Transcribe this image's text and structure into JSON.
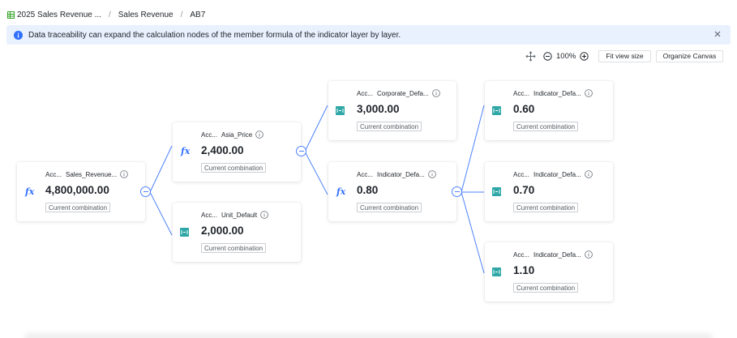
{
  "breadcrumb": {
    "items": [
      {
        "label": "2025 Sales Revenue ..."
      },
      {
        "label": "Sales Revenue"
      },
      {
        "label": "AB7"
      }
    ]
  },
  "banner": {
    "message": "Data traceability can expand the calculation nodes of the member formula of the indicator layer by layer."
  },
  "toolbar": {
    "zoom": "100%",
    "fit_label": "Fit view size",
    "organize_label": "Organize Canvas"
  },
  "colors": {
    "accent": "#3370ff",
    "link": "#4e83fd",
    "value_icon": "#2ea7a6",
    "banner_bg": "#e9f1fe"
  },
  "nodes": [
    {
      "code": "Acc...",
      "name": "Sales_Revenue...",
      "value": "4,800,000.00",
      "tag": "Current combination",
      "icon": "formula-icon"
    },
    {
      "code": "Acc...",
      "name": "Asia_Price",
      "value": "2,400.00",
      "tag": "Current combination",
      "icon": "formula-icon"
    },
    {
      "code": "Acc...",
      "name": "Unit_Default",
      "value": "2,000.00",
      "tag": "Current combination",
      "icon": "value-icon"
    },
    {
      "code": "Acc...",
      "name": "Corporate_Defa...",
      "value": "3,000.00",
      "tag": "Current combination",
      "icon": "value-icon"
    },
    {
      "code": "Acc...",
      "name": "Indicator_Defa...",
      "value": "0.80",
      "tag": "Current combination",
      "icon": "formula-icon"
    },
    {
      "code": "Acc...",
      "name": "Indicator_Defa...",
      "value": "0.60",
      "tag": "Current combination",
      "icon": "value-icon"
    },
    {
      "code": "Acc...",
      "name": "Indicator_Defa...",
      "value": "0.70",
      "tag": "Current combination",
      "icon": "value-icon"
    },
    {
      "code": "Acc...",
      "name": "Indicator_Defa...",
      "value": "1.10",
      "tag": "Current combination",
      "icon": "value-icon"
    }
  ]
}
